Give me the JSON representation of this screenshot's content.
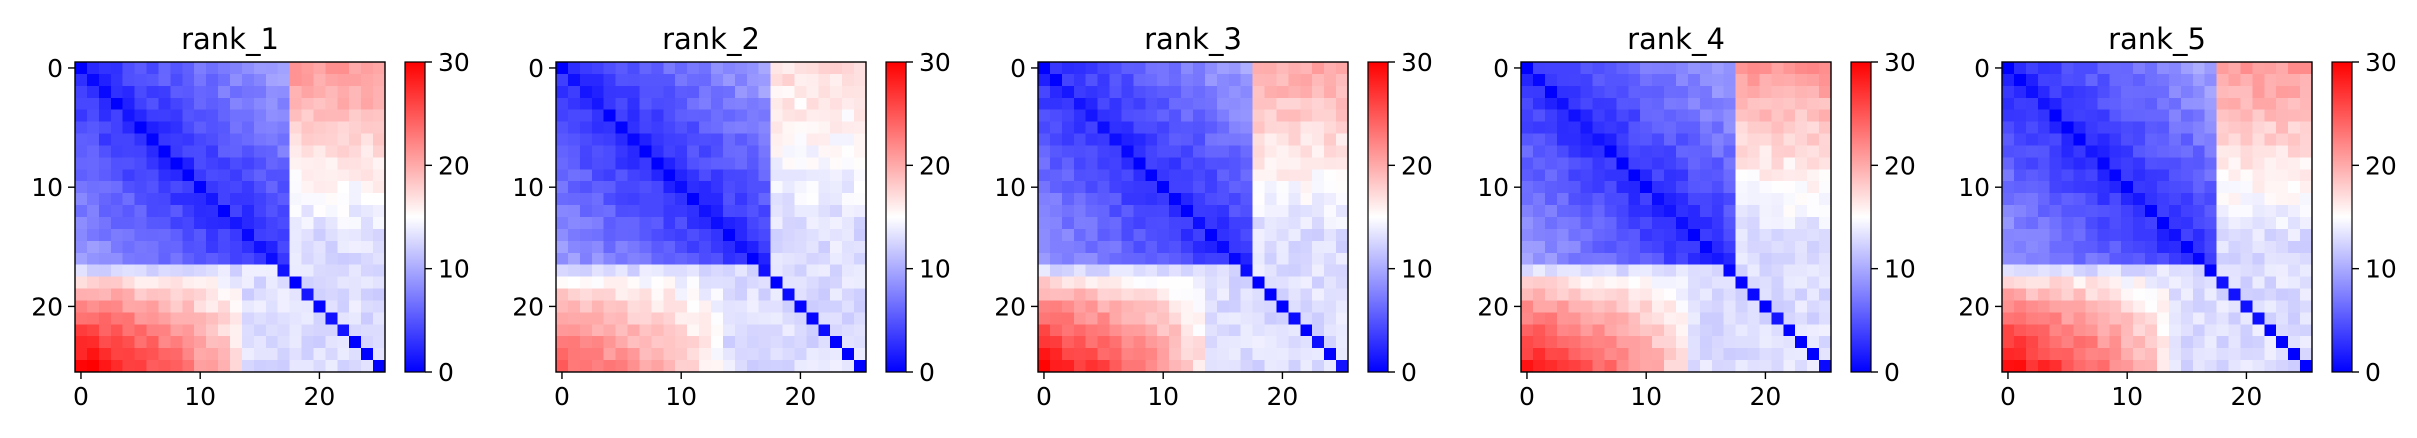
{
  "chart_data": {
    "type": "heatmap",
    "colormap": "bwr",
    "colors": {
      "low": "#0000ff",
      "mid": "#ffffff",
      "high": "#ff0000"
    },
    "vmin": 0,
    "vmax": 30,
    "matrix_size": 26,
    "x_ticks": [
      0,
      10,
      20
    ],
    "y_ticks": [
      0,
      10,
      20
    ],
    "colorbar_ticks": [
      0,
      10,
      20,
      30
    ],
    "panels": [
      {
        "title": "rank_1",
        "seed": 11,
        "corner_red": 30,
        "strip_red": 21
      },
      {
        "title": "rank_2",
        "seed": 23,
        "corner_red": 24,
        "strip_red": 17
      },
      {
        "title": "rank_3",
        "seed": 37,
        "corner_red": 29,
        "strip_red": 20
      },
      {
        "title": "rank_4",
        "seed": 51,
        "corner_red": 28,
        "strip_red": 21
      },
      {
        "title": "rank_5",
        "seed": 67,
        "corner_red": 29,
        "strip_red": 21
      }
    ]
  }
}
